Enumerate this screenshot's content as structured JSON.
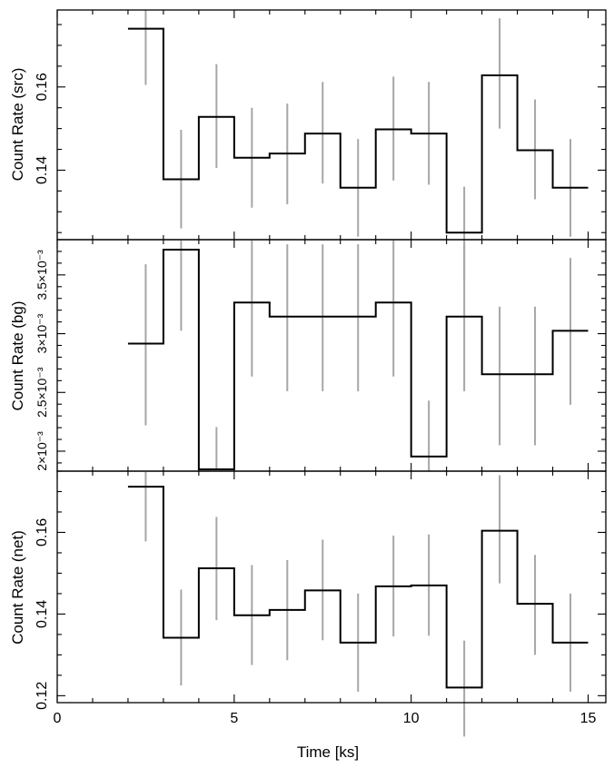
{
  "chart_data": [
    {
      "type": "line",
      "ylabel": "Count Rate (src)",
      "xlim": [
        0,
        15.5
      ],
      "ylim": [
        0.1233,
        0.1785
      ],
      "y_ticks": [
        0.14,
        0.16
      ],
      "y_tick_labels": [
        "0.14",
        "0.16"
      ],
      "bin_edges": [
        2.0,
        3.0,
        4.0,
        5.0,
        6.0,
        7.0,
        8.0,
        9.0,
        10.0,
        11.0,
        12.0,
        13.0,
        14.0,
        15.0
      ],
      "x": [
        2.5,
        3.5,
        4.5,
        5.5,
        6.5,
        7.5,
        8.5,
        9.5,
        10.5,
        11.5,
        12.5,
        13.5,
        14.5
      ],
      "values": [
        0.174,
        0.1378,
        0.1528,
        0.143,
        0.144,
        0.1488,
        0.1358,
        0.1498,
        0.1488,
        0.125,
        0.1628,
        0.1448,
        0.1358
      ],
      "err_low": [
        0.1605,
        0.126,
        0.1405,
        0.131,
        0.1318,
        0.1368,
        0.124,
        0.1375,
        0.1365,
        0.1135,
        0.15,
        0.133,
        0.124
      ],
      "err_high": [
        0.1785,
        0.1497,
        0.1655,
        0.155,
        0.156,
        0.1612,
        0.1475,
        0.1625,
        0.1612,
        0.136,
        0.1765,
        0.157,
        0.1475
      ],
      "colors": {
        "line": "#000000",
        "errorbar": "#a6a6a6"
      }
    },
    {
      "type": "line",
      "ylabel": "Count Rate (bg)",
      "xlim": [
        0,
        15.5
      ],
      "ylim": [
        0.00183,
        0.0038
      ],
      "y_ticks": [
        0.002,
        0.0025,
        0.003,
        0.0035
      ],
      "y_tick_labels": [
        "2×10⁻³",
        "2.5×10⁻³",
        "3×10⁻³",
        "3.5×10⁻³"
      ],
      "bin_edges": [
        2.0,
        3.0,
        4.0,
        5.0,
        6.0,
        7.0,
        8.0,
        9.0,
        10.0,
        11.0,
        12.0,
        13.0,
        14.0,
        15.0
      ],
      "x": [
        2.5,
        3.5,
        4.5,
        5.5,
        6.5,
        7.5,
        8.5,
        9.5,
        10.5,
        11.5,
        12.5,
        13.5,
        14.5
      ],
      "values": [
        0.002915,
        0.003715,
        0.001845,
        0.003265,
        0.003145,
        0.003145,
        0.003145,
        0.003265,
        0.001955,
        0.003145,
        0.002655,
        0.002655,
        0.003025
      ],
      "err_low": [
        0.00222,
        0.003025,
        0.001845,
        0.002635,
        0.00251,
        0.00251,
        0.00251,
        0.002635,
        0.00183,
        0.00251,
        0.00205,
        0.00205,
        0.002395
      ],
      "err_high": [
        0.00359,
        0.0038,
        0.002205,
        0.0038,
        0.00376,
        0.00376,
        0.00376,
        0.0038,
        0.00243,
        0.00376,
        0.00323,
        0.00323,
        0.003645
      ],
      "colors": {
        "line": "#000000",
        "errorbar": "#a6a6a6"
      }
    },
    {
      "type": "line",
      "xlabel": "Time [ks]",
      "ylabel": "Count Rate (net)",
      "xlim": [
        0,
        15.5
      ],
      "ylim": [
        0.1183,
        0.175
      ],
      "x_ticks": [
        0,
        5,
        10,
        15
      ],
      "x_tick_labels": [
        "0",
        "5",
        "10",
        "15"
      ],
      "y_ticks": [
        0.12,
        0.14,
        0.16
      ],
      "y_tick_labels": [
        "0.12",
        "0.14",
        "0.16"
      ],
      "bin_edges": [
        2.0,
        3.0,
        4.0,
        5.0,
        6.0,
        7.0,
        8.0,
        9.0,
        10.0,
        11.0,
        12.0,
        13.0,
        14.0,
        15.0
      ],
      "x": [
        2.5,
        3.5,
        4.5,
        5.5,
        6.5,
        7.5,
        8.5,
        9.5,
        10.5,
        11.5,
        12.5,
        13.5,
        14.5
      ],
      "values": [
        0.1712,
        0.1342,
        0.1512,
        0.1397,
        0.141,
        0.1458,
        0.133,
        0.1468,
        0.147,
        0.122,
        0.1604,
        0.1425,
        0.133
      ],
      "err_low": [
        0.1578,
        0.1225,
        0.1385,
        0.1275,
        0.1287,
        0.1336,
        0.121,
        0.1345,
        0.1347,
        0.11,
        0.1475,
        0.13,
        0.121
      ],
      "err_high": [
        0.175,
        0.146,
        0.1638,
        0.152,
        0.1532,
        0.1582,
        0.145,
        0.1592,
        0.1595,
        0.1335,
        0.174,
        0.1545,
        0.145
      ],
      "colors": {
        "line": "#000000",
        "errorbar": "#a6a6a6"
      }
    }
  ]
}
